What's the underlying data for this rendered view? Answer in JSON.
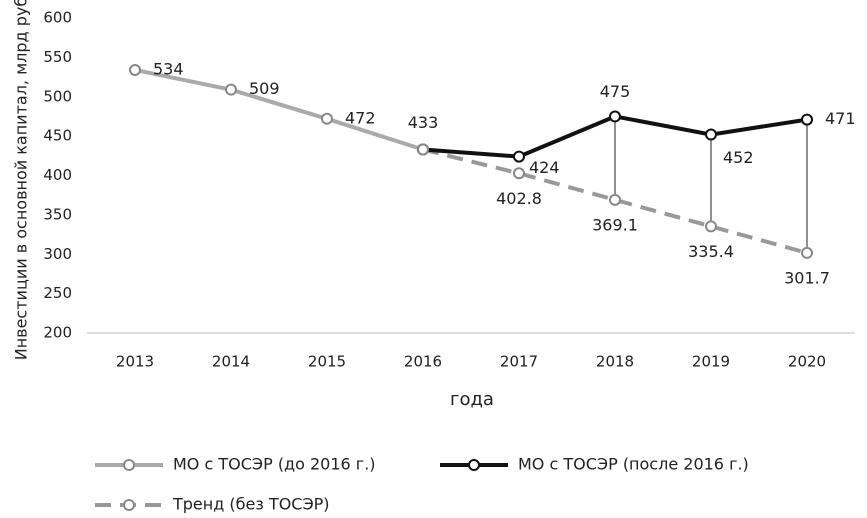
{
  "chart_data": {
    "type": "line",
    "y_label": "Инвестиции в основной капитал, млрд руб.",
    "x_label": "года",
    "categories": [
      "2013",
      "2014",
      "2015",
      "2016",
      "2017",
      "2018",
      "2019",
      "2020"
    ],
    "series": [
      {
        "name": "МО с ТОСЭР (до 2016 г.)",
        "color": "#aaaaaa",
        "dashed": false,
        "values": [
          534,
          509,
          472,
          433,
          null,
          null,
          null,
          null
        ]
      },
      {
        "name": "МО с ТОСЭР (после 2016 г.)",
        "color": "#111111",
        "dashed": false,
        "values": [
          null,
          null,
          null,
          433,
          424,
          475,
          452,
          471
        ]
      },
      {
        "name": "Тренд (без ТОСЭР)",
        "color": "#999999",
        "dashed": true,
        "values": [
          null,
          null,
          null,
          433,
          402.8,
          369.1,
          335.4,
          301.7
        ]
      }
    ],
    "ylim": [
      200,
      600
    ],
    "yticks": [
      200,
      250,
      300,
      350,
      400,
      450,
      500,
      550,
      600
    ],
    "grid": false,
    "legend": "bottom"
  }
}
